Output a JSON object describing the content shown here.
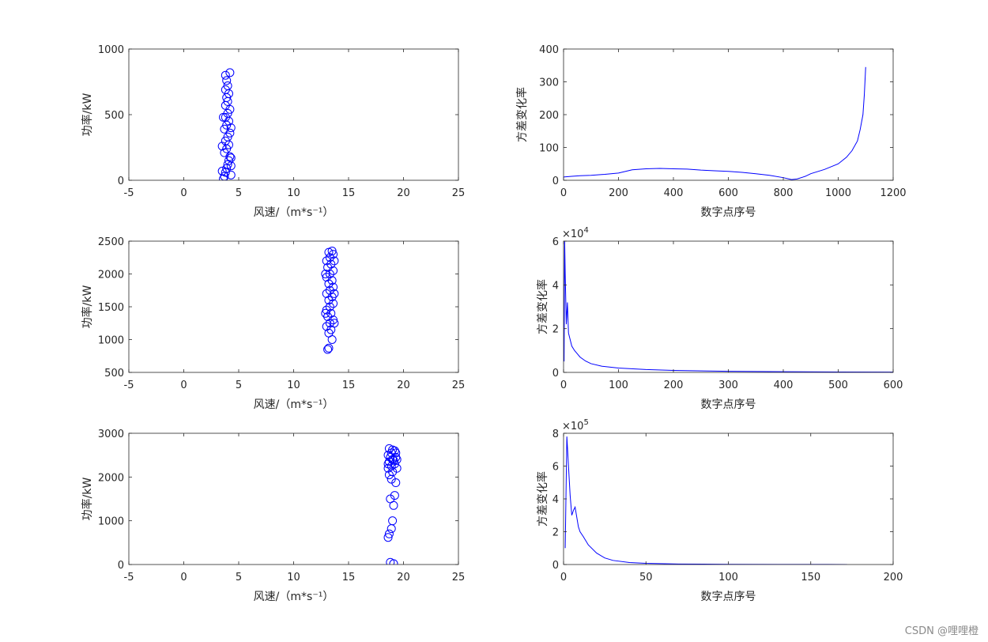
{
  "watermark": "CSDN @哩哩橙",
  "colors": {
    "series": "#0000ff",
    "axis": "#262626",
    "text": "#262626"
  },
  "chart_data": [
    {
      "type": "scatter",
      "xlabel": "风速/（m*s⁻¹）",
      "ylabel": "功率/kW",
      "xlim": [
        -5,
        25
      ],
      "ylim": [
        0,
        1000
      ],
      "xticks": [
        -5,
        0,
        5,
        10,
        15,
        20,
        25
      ],
      "yticks": [
        0,
        500,
        1000
      ],
      "xticklabels": [
        "-5",
        "0",
        "5",
        "10",
        "15",
        "20",
        "25"
      ],
      "yticklabels": [
        "0",
        "500",
        "1000"
      ],
      "marker": "circle-open",
      "points": [
        [
          3.6,
          10
        ],
        [
          3.7,
          30
        ],
        [
          3.8,
          60
        ],
        [
          3.9,
          90
        ],
        [
          4.0,
          120
        ],
        [
          4.1,
          150
        ],
        [
          4.2,
          180
        ],
        [
          3.7,
          210
        ],
        [
          3.9,
          240
        ],
        [
          4.1,
          270
        ],
        [
          3.8,
          300
        ],
        [
          4.0,
          330
        ],
        [
          4.2,
          360
        ],
        [
          3.7,
          390
        ],
        [
          3.9,
          420
        ],
        [
          4.1,
          450
        ],
        [
          3.8,
          480
        ],
        [
          4.0,
          510
        ],
        [
          4.2,
          540
        ],
        [
          3.8,
          570
        ],
        [
          4.0,
          600
        ],
        [
          3.9,
          630
        ],
        [
          4.1,
          660
        ],
        [
          3.8,
          690
        ],
        [
          4.0,
          720
        ],
        [
          3.9,
          760
        ],
        [
          3.8,
          800
        ],
        [
          4.2,
          820
        ],
        [
          4.3,
          40
        ],
        [
          3.5,
          70
        ],
        [
          4.3,
          170
        ],
        [
          3.5,
          260
        ],
        [
          4.3,
          400
        ],
        [
          3.6,
          480
        ],
        [
          4.3,
          110
        ]
      ]
    },
    {
      "type": "line",
      "xlabel": "数字点序号",
      "ylabel": "方差变化率",
      "xlim": [
        0,
        1200
      ],
      "ylim": [
        0,
        400
      ],
      "xticks": [
        0,
        200,
        400,
        600,
        800,
        1000,
        1200
      ],
      "yticks": [
        0,
        100,
        200,
        300,
        400
      ],
      "xticklabels": [
        "0",
        "200",
        "400",
        "600",
        "800",
        "1000",
        "1200"
      ],
      "yticklabels": [
        "0",
        "100",
        "200",
        "300",
        "400"
      ],
      "x": [
        0,
        30,
        60,
        100,
        150,
        200,
        250,
        300,
        350,
        400,
        450,
        500,
        550,
        600,
        650,
        700,
        750,
        800,
        830,
        850,
        880,
        900,
        950,
        1000,
        1030,
        1050,
        1070,
        1080,
        1090,
        1095,
        1100
      ],
      "y": [
        10,
        12,
        14,
        15,
        18,
        22,
        32,
        35,
        36,
        35,
        34,
        31,
        29,
        27,
        24,
        20,
        15,
        8,
        2,
        4,
        12,
        20,
        33,
        50,
        70,
        90,
        120,
        155,
        200,
        260,
        345
      ]
    },
    {
      "type": "scatter",
      "xlabel": "风速/（m*s⁻¹）",
      "ylabel": "功率/kW",
      "xlim": [
        -5,
        25
      ],
      "ylim": [
        500,
        2500
      ],
      "xticks": [
        -5,
        0,
        5,
        10,
        15,
        20,
        25
      ],
      "yticks": [
        500,
        1000,
        1500,
        2000,
        2500
      ],
      "xticklabels": [
        "-5",
        "0",
        "5",
        "10",
        "15",
        "20",
        "25"
      ],
      "yticklabels": [
        "500",
        "1000",
        "1500",
        "2000",
        "2500"
      ],
      "marker": "circle-open",
      "points": [
        [
          13.1,
          850
        ],
        [
          13.2,
          870
        ],
        [
          13.5,
          1000
        ],
        [
          13.2,
          1100
        ],
        [
          13.4,
          1150
        ],
        [
          13.0,
          1200
        ],
        [
          13.3,
          1250
        ],
        [
          13.6,
          1300
        ],
        [
          13.1,
          1350
        ],
        [
          13.4,
          1400
        ],
        [
          13.0,
          1450
        ],
        [
          13.3,
          1500
        ],
        [
          13.6,
          1550
        ],
        [
          13.2,
          1600
        ],
        [
          13.5,
          1650
        ],
        [
          13.0,
          1700
        ],
        [
          13.3,
          1750
        ],
        [
          13.6,
          1800
        ],
        [
          13.2,
          1850
        ],
        [
          13.5,
          1900
        ],
        [
          13.0,
          1950
        ],
        [
          13.3,
          2000
        ],
        [
          13.6,
          2050
        ],
        [
          13.1,
          2100
        ],
        [
          13.4,
          2150
        ],
        [
          13.0,
          2200
        ],
        [
          13.3,
          2250
        ],
        [
          13.6,
          2300
        ],
        [
          13.2,
          2330
        ],
        [
          13.5,
          2350
        ],
        [
          13.7,
          2200
        ],
        [
          12.9,
          2000
        ],
        [
          13.7,
          1700
        ],
        [
          12.9,
          1400
        ],
        [
          13.7,
          1250
        ]
      ]
    },
    {
      "type": "line",
      "xlabel": "数字点序号",
      "ylabel": "方差变化率",
      "xlim": [
        0,
        600
      ],
      "ylim": [
        0,
        60000
      ],
      "xticks": [
        0,
        100,
        200,
        300,
        400,
        500,
        600
      ],
      "yticks": [
        0,
        20000,
        40000,
        60000
      ],
      "xticklabels": [
        "0",
        "100",
        "200",
        "300",
        "400",
        "500",
        "600"
      ],
      "yticklabels": [
        "0",
        "2",
        "4",
        "6"
      ],
      "yexponent": "4",
      "x": [
        1,
        2,
        3,
        5,
        7,
        9,
        11,
        13,
        15,
        20,
        25,
        30,
        40,
        50,
        70,
        100,
        150,
        200,
        300,
        400,
        500,
        600
      ],
      "y": [
        5000,
        60000,
        45000,
        22000,
        32000,
        18000,
        16000,
        14000,
        12000,
        10000,
        8500,
        7000,
        5200,
        4000,
        2800,
        2000,
        1300,
        900,
        500,
        300,
        200,
        150
      ]
    },
    {
      "type": "scatter",
      "xlabel": "风速/（m*s⁻¹）",
      "ylabel": "功率/kW",
      "xlim": [
        -5,
        25
      ],
      "ylim": [
        0,
        3000
      ],
      "xticks": [
        -5,
        0,
        5,
        10,
        15,
        20,
        25
      ],
      "yticks": [
        0,
        1000,
        2000,
        3000
      ],
      "xticklabels": [
        "-5",
        "0",
        "5",
        "10",
        "15",
        "20",
        "25"
      ],
      "yticklabels": [
        "0",
        "1000",
        "2000",
        "3000"
      ],
      "marker": "circle-open",
      "points": [
        [
          18.8,
          50
        ],
        [
          19.1,
          20
        ],
        [
          18.6,
          620
        ],
        [
          18.7,
          700
        ],
        [
          18.9,
          820
        ],
        [
          19.0,
          1000
        ],
        [
          18.8,
          1500
        ],
        [
          19.2,
          1580
        ],
        [
          19.1,
          1350
        ],
        [
          19.3,
          1870
        ],
        [
          18.9,
          1950
        ],
        [
          18.7,
          2050
        ],
        [
          19.0,
          2120
        ],
        [
          18.6,
          2200
        ],
        [
          18.9,
          2250
        ],
        [
          19.2,
          2300
        ],
        [
          18.7,
          2350
        ],
        [
          19.0,
          2400
        ],
        [
          19.3,
          2450
        ],
        [
          18.6,
          2500
        ],
        [
          18.9,
          2550
        ],
        [
          19.2,
          2600
        ],
        [
          18.7,
          2650
        ],
        [
          19.0,
          2620
        ],
        [
          19.3,
          2550
        ],
        [
          18.8,
          2450
        ],
        [
          19.1,
          2380
        ],
        [
          18.6,
          2300
        ],
        [
          19.4,
          2400
        ],
        [
          19.4,
          2200
        ]
      ]
    },
    {
      "type": "line",
      "xlabel": "数字点序号",
      "ylabel": "方差变化率",
      "xlim": [
        0,
        200
      ],
      "ylim": [
        0,
        800000
      ],
      "xticks": [
        0,
        50,
        100,
        150,
        200
      ],
      "yticks": [
        0,
        200000,
        400000,
        600000,
        800000
      ],
      "xticklabels": [
        "0",
        "50",
        "100",
        "150",
        "200"
      ],
      "yticklabels": [
        "0",
        "2",
        "4",
        "6",
        "8"
      ],
      "yexponent": "5",
      "x": [
        1,
        2,
        3,
        4,
        5,
        6,
        7,
        8,
        9,
        10,
        12,
        15,
        20,
        25,
        30,
        40,
        50,
        70,
        100,
        130,
        160,
        172
      ],
      "y": [
        100000,
        780000,
        600000,
        420000,
        300000,
        330000,
        350000,
        290000,
        230000,
        200000,
        170000,
        120000,
        70000,
        40000,
        25000,
        12000,
        7000,
        3000,
        1500,
        800,
        400,
        300
      ]
    }
  ]
}
